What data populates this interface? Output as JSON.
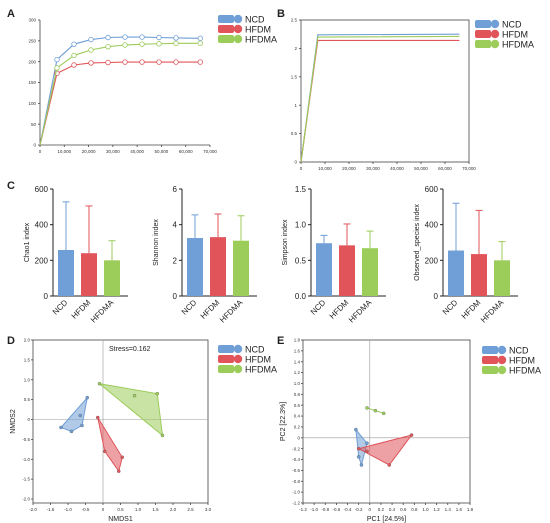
{
  "panel_labels": {
    "a": "A",
    "b": "B",
    "c": "C",
    "d": "D",
    "e": "E"
  },
  "colors": {
    "NCD": "#6f9fd6",
    "HFDM": "#e0545a",
    "HFDMA": "#9ccc5a"
  },
  "groups": [
    "NCD",
    "HFDM",
    "HFDMA"
  ],
  "chart_data": [
    {
      "id": "A",
      "type": "line",
      "xlim": [
        0,
        70000
      ],
      "ylim": [
        0,
        300
      ],
      "xticks": [
        0,
        10000,
        20000,
        30000,
        40000,
        50000,
        60000,
        70000
      ],
      "xtick_labels": [
        "0",
        "10,000",
        "20,000",
        "30,000",
        "40,000",
        "50,000",
        "60,000",
        "70,000"
      ],
      "yticks": [
        0,
        50,
        100,
        150,
        200,
        250,
        300
      ],
      "legend": "top-right",
      "series": [
        {
          "name": "NCD",
          "x": [
            0,
            7000,
            14000,
            21000,
            28000,
            35000,
            42000,
            49000,
            56000,
            66000
          ],
          "y": [
            0,
            205,
            242,
            253,
            258,
            259,
            259,
            258,
            257,
            256
          ]
        },
        {
          "name": "HFDM",
          "x": [
            0,
            7000,
            14000,
            21000,
            28000,
            35000,
            42000,
            49000,
            56000,
            66000
          ],
          "y": [
            0,
            172,
            192,
            197,
            198,
            199,
            199,
            199,
            199,
            199
          ]
        },
        {
          "name": "HFDMA",
          "x": [
            0,
            7000,
            14000,
            21000,
            28000,
            35000,
            42000,
            49000,
            56000,
            66000
          ],
          "y": [
            0,
            185,
            215,
            228,
            236,
            240,
            242,
            243,
            244,
            244
          ]
        }
      ]
    },
    {
      "id": "B",
      "type": "line",
      "xlim": [
        0,
        70000
      ],
      "ylim": [
        0,
        2.5
      ],
      "xticks": [
        0,
        10000,
        20000,
        30000,
        40000,
        50000,
        60000,
        70000
      ],
      "xtick_labels": [
        "0",
        "10,000",
        "20,000",
        "30,000",
        "40,000",
        "50,000",
        "60,000",
        "70,000"
      ],
      "yticks": [
        0,
        0.5,
        1,
        1.5,
        2,
        2.5
      ],
      "ytick_labels": [
        "0",
        "0.5",
        "1",
        "1.5",
        "2",
        "2.5"
      ],
      "legend": "top-right",
      "series": [
        {
          "name": "NCD",
          "x": [
            0,
            7000,
            66000
          ],
          "y": [
            0,
            2.24,
            2.25
          ]
        },
        {
          "name": "HFDM",
          "x": [
            0,
            7000,
            66000
          ],
          "y": [
            0,
            2.14,
            2.14
          ]
        },
        {
          "name": "HFDMA",
          "x": [
            0,
            7000,
            66000
          ],
          "y": [
            0,
            2.2,
            2.21
          ]
        }
      ]
    },
    {
      "id": "C1",
      "type": "bar",
      "ylabel": "Chao1 index",
      "categories": [
        "NCD",
        "HFDM",
        "HFDMA"
      ],
      "values": [
        258,
        240,
        200
      ],
      "errors": [
        270,
        265,
        110
      ],
      "ylim": [
        0,
        600
      ],
      "yticks": [
        0,
        200,
        400,
        600
      ]
    },
    {
      "id": "C2",
      "type": "bar",
      "ylabel": "Shannon index",
      "categories": [
        "NCD",
        "HFDM",
        "HFDMA"
      ],
      "values": [
        3.25,
        3.3,
        3.1
      ],
      "errors": [
        1.3,
        1.3,
        1.4
      ],
      "ylim": [
        0,
        6
      ],
      "yticks": [
        0,
        2,
        4,
        6
      ]
    },
    {
      "id": "C3",
      "type": "bar",
      "ylabel": "Simpson index",
      "categories": [
        "NCD",
        "HFDM",
        "HFDMA"
      ],
      "values": [
        0.74,
        0.71,
        0.67
      ],
      "errors": [
        0.11,
        0.3,
        0.24
      ],
      "ylim": [
        0,
        1.5
      ],
      "yticks": [
        0,
        0.5,
        1,
        1.5
      ],
      "ytick_labels": [
        "0.0",
        "0.5",
        "1.0",
        "1.5"
      ]
    },
    {
      "id": "C4",
      "type": "bar",
      "ylabel": "Observed_species index",
      "categories": [
        "NCD",
        "HFDM",
        "HFDMA"
      ],
      "values": [
        255,
        235,
        200
      ],
      "errors": [
        265,
        245,
        105
      ],
      "ylim": [
        0,
        600
      ],
      "yticks": [
        0,
        200,
        400,
        600
      ]
    },
    {
      "id": "D",
      "type": "scatter",
      "xlabel": "NMDS1",
      "ylabel": "NMDS2",
      "annotation": "Stress=0.162",
      "xlim": [
        -2.0,
        3.0
      ],
      "ylim": [
        -2.1,
        2.0
      ],
      "xticks": [
        -2.0,
        -1.5,
        -1.0,
        -0.5,
        0,
        0.5,
        1.0,
        1.5,
        2.0,
        2.5,
        3.0
      ],
      "xtick_labels": [
        "-2.0",
        "-1.5",
        "-1.0",
        "-0.5",
        "0",
        "0.5",
        "1.0",
        "1.5",
        "2.0",
        "2.5",
        "3.0"
      ],
      "yticks": [
        -2.0,
        -1.5,
        -1.0,
        -0.5,
        0,
        0.5,
        1.0,
        1.5,
        2.0
      ],
      "ytick_labels": [
        "-2.0",
        "-1.5",
        "-1.0",
        "-0.5",
        "0",
        "0.5",
        "1.0",
        "1.5",
        "2.0"
      ],
      "legend": "top-right",
      "series": [
        {
          "name": "NCD",
          "points": [
            [
              -1.2,
              -0.2
            ],
            [
              -0.45,
              0.55
            ],
            [
              -0.65,
              0.1
            ],
            [
              -0.9,
              -0.3
            ],
            [
              -0.6,
              -0.15
            ]
          ]
        },
        {
          "name": "HFDM",
          "points": [
            [
              -0.15,
              0.05
            ],
            [
              0.55,
              -0.95
            ],
            [
              0.45,
              -1.3
            ],
            [
              0.05,
              -0.8
            ]
          ]
        },
        {
          "name": "HFDMA",
          "points": [
            [
              -0.1,
              0.9
            ],
            [
              1.55,
              0.65
            ],
            [
              1.7,
              -0.4
            ],
            [
              0.9,
              0.6
            ]
          ]
        }
      ]
    },
    {
      "id": "E",
      "type": "scatter",
      "xlabel": "PC1 [24.5%]",
      "ylabel": "PC2 [22.3%]",
      "xlim": [
        -1.2,
        1.8
      ],
      "ylim": [
        -1.2,
        1.8
      ],
      "xticks": [
        -1.2,
        -1.0,
        -0.8,
        -0.6,
        -0.4,
        -0.2,
        0,
        0.2,
        0.4,
        0.6,
        0.8,
        1.0,
        1.2,
        1.4,
        1.6,
        1.8
      ],
      "xtick_labels": [
        "-1.2",
        "-1.0",
        "-0.8",
        "-0.6",
        "-0.4",
        "-0.2",
        "0",
        "0.2",
        "0.4",
        "0.6",
        "0.8",
        "1.0",
        "1.2",
        "1.4",
        "1.6",
        "1.8"
      ],
      "yticks": [
        -1.2,
        -1.0,
        -0.8,
        -0.6,
        -0.4,
        -0.2,
        0,
        0.2,
        0.4,
        0.6,
        0.8,
        1.0,
        1.2,
        1.4,
        1.6,
        1.8
      ],
      "ytick_labels": [
        "-1.2",
        "-1.0",
        "-0.8",
        "-0.6",
        "-0.4",
        "-0.2",
        "0",
        "0.2",
        "0.4",
        "0.6",
        "0.8",
        "1.0",
        "1.2",
        "1.4",
        "1.6",
        "1.8"
      ],
      "legend": "top-right",
      "series": [
        {
          "name": "NCD",
          "points": [
            [
              -0.25,
              0.15
            ],
            [
              -0.2,
              -0.35
            ],
            [
              -0.05,
              -0.1
            ],
            [
              -0.15,
              -0.5
            ]
          ]
        },
        {
          "name": "HFDM",
          "points": [
            [
              -0.2,
              -0.2
            ],
            [
              0.75,
              0.05
            ],
            [
              0.35,
              -0.5
            ],
            [
              -0.05,
              -0.25
            ]
          ]
        },
        {
          "name": "HFDMA",
          "points": [
            [
              -0.05,
              0.55
            ],
            [
              0.25,
              0.45
            ],
            [
              0.1,
              0.5
            ]
          ]
        }
      ]
    }
  ]
}
